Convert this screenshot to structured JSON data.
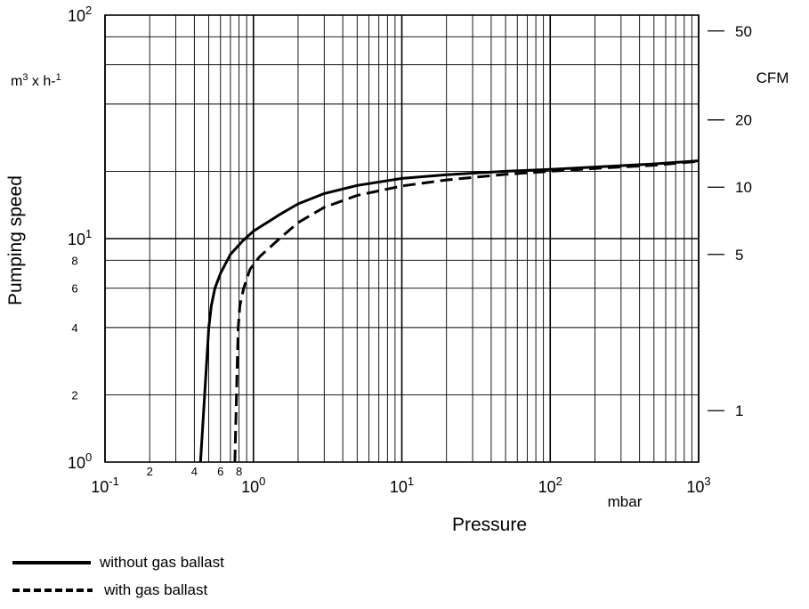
{
  "chart_data": {
    "type": "line",
    "x_scale": "log",
    "y_scale": "log",
    "xlim": [
      0.1,
      1000
    ],
    "ylim": [
      1,
      100
    ],
    "xlabel": "Pressure",
    "x_unit": "mbar",
    "ylabel": "Pumping speed",
    "y_unit": "m3 x h-1",
    "y2_unit": "CFM",
    "grid": true,
    "legend_placement": "bottom-left",
    "x_major_ticks": [
      {
        "base": "10",
        "exp": "-1",
        "value": 0.1
      },
      {
        "base": "10",
        "exp": "0",
        "value": 1
      },
      {
        "base": "10",
        "exp": "1",
        "value": 10
      },
      {
        "base": "10",
        "exp": "2",
        "value": 100
      },
      {
        "base": "10",
        "exp": "3",
        "value": 1000
      }
    ],
    "x_minor_tick_labels": [
      {
        "label": "2",
        "value": 0.2
      },
      {
        "label": "4",
        "value": 0.4
      },
      {
        "label": "6",
        "value": 0.6
      },
      {
        "label": "8",
        "value": 0.8
      }
    ],
    "y_major_ticks": [
      {
        "base": "10",
        "exp": "0",
        "value": 1
      },
      {
        "base": "10",
        "exp": "1",
        "value": 10
      },
      {
        "base": "10",
        "exp": "2",
        "value": 100
      }
    ],
    "y_minor_tick_labels": [
      {
        "label": "2",
        "value": 2
      },
      {
        "label": "4",
        "value": 4
      },
      {
        "label": "6",
        "value": 6
      },
      {
        "label": "8",
        "value": 8
      }
    ],
    "y2_ticks": [
      {
        "label": "1",
        "value": 1
      },
      {
        "label": "5",
        "value": 5
      },
      {
        "label": "10",
        "value": 10
      },
      {
        "label": "20",
        "value": 20
      },
      {
        "label": "50",
        "value": 50
      }
    ],
    "series": [
      {
        "name": "without gas ballast",
        "style": "solid",
        "color": "#000000",
        "points": [
          [
            0.44,
            1.0
          ],
          [
            0.5,
            4.0
          ],
          [
            0.52,
            5.0
          ],
          [
            0.55,
            6.0
          ],
          [
            0.6,
            7.0
          ],
          [
            0.7,
            8.5
          ],
          [
            0.85,
            9.8
          ],
          [
            1.0,
            10.8
          ],
          [
            1.5,
            12.8
          ],
          [
            2.0,
            14.3
          ],
          [
            3.0,
            15.9
          ],
          [
            5.0,
            17.3
          ],
          [
            10.0,
            18.6
          ],
          [
            20.0,
            19.3
          ],
          [
            50.0,
            20.0
          ],
          [
            100.0,
            20.4
          ],
          [
            200.0,
            20.9
          ],
          [
            500.0,
            21.6
          ],
          [
            1000.0,
            22.3
          ]
        ]
      },
      {
        "name": "with gas ballast",
        "style": "dashed",
        "color": "#000000",
        "points": [
          [
            0.75,
            1.0
          ],
          [
            0.78,
            3.0
          ],
          [
            0.79,
            4.0
          ],
          [
            0.81,
            5.0
          ],
          [
            0.86,
            6.0
          ],
          [
            0.95,
            7.3
          ],
          [
            1.1,
            8.3
          ],
          [
            1.5,
            10.0
          ],
          [
            2.0,
            11.8
          ],
          [
            3.0,
            13.8
          ],
          [
            5.0,
            15.6
          ],
          [
            10.0,
            17.2
          ],
          [
            20.0,
            18.3
          ],
          [
            50.0,
            19.4
          ],
          [
            100.0,
            20.0
          ],
          [
            200.0,
            20.6
          ],
          [
            500.0,
            21.3
          ],
          [
            1000.0,
            22.2
          ]
        ]
      }
    ]
  }
}
